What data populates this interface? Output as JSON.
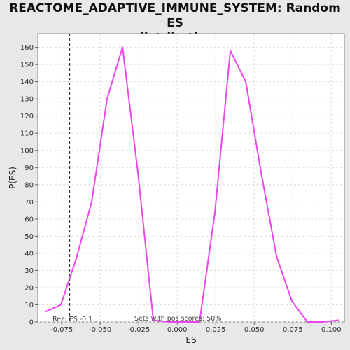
{
  "chart_data": {
    "type": "line",
    "title_line1": "REACTOME_ADAPTIVE_IMMUNE_SYSTEM: Random ES",
    "title_line2": "distribution",
    "xlabel": "ES",
    "ylabel": "P(ES)",
    "xlim": [
      -0.0905,
      0.1085
    ],
    "ylim": [
      0,
      168
    ],
    "x_ticks": [
      -0.075,
      -0.05,
      -0.025,
      0.0,
      0.025,
      0.05,
      0.075,
      0.1
    ],
    "x_tick_labels": [
      "-0.075",
      "-0.050",
      "-0.025",
      "0.000",
      "0.025",
      "0.050",
      "0.075",
      "0.100"
    ],
    "y_ticks": [
      0,
      10,
      20,
      30,
      40,
      50,
      60,
      70,
      80,
      90,
      100,
      110,
      120,
      130,
      140,
      150,
      160
    ],
    "grid": true,
    "series": [
      {
        "color": "#ee44ee",
        "x": [
          -0.0855,
          -0.0755,
          -0.0655,
          -0.0555,
          -0.0455,
          -0.0355,
          -0.0255,
          -0.0155,
          -0.0055,
          0.0045,
          0.0145,
          0.0245,
          0.0345,
          0.0445,
          0.0545,
          0.0645,
          0.0745,
          0.0845,
          0.0945,
          0.1045
        ],
        "values": [
          6,
          10,
          37,
          70,
          130,
          160,
          87,
          1,
          0,
          0,
          0,
          64,
          158,
          140,
          87,
          38,
          12,
          0,
          0,
          1
        ]
      }
    ],
    "real_es": {
      "x": -0.07,
      "label": "Real ES -0.1"
    },
    "annotation": "Sets with pos scores: 50%"
  }
}
